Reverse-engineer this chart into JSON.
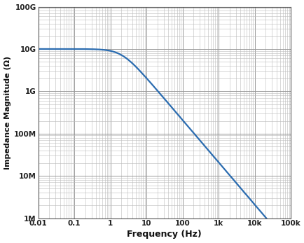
{
  "R": 10000000000.0,
  "C": 7.6e-12,
  "freq_min": 0.01,
  "freq_max": 100000.0,
  "n_points": 3000,
  "xlim": [
    0.01,
    100000.0
  ],
  "ylim": [
    1000000.0,
    100000000000.0
  ],
  "xlabel": "Frequency (Hz)",
  "ylabel": "Impedance Magnitude (Ω)",
  "line_color": "#2b6cb0",
  "line_width": 1.6,
  "grid_major_color": "#999999",
  "grid_minor_color": "#bbbbbb",
  "grid_major_lw": 0.7,
  "grid_minor_lw": 0.4,
  "background_color": "#ffffff",
  "xtick_labels": [
    "0.01",
    "0.1",
    "1",
    "10",
    "100",
    "1k",
    "10k",
    "100k"
  ],
  "xtick_positions": [
    0.01,
    0.1,
    1,
    10,
    100,
    1000,
    10000,
    100000
  ],
  "ytick_labels": [
    "1M",
    "10M",
    "100M",
    "1G",
    "10G",
    "100G"
  ],
  "ytick_positions": [
    1000000.0,
    10000000.0,
    100000000.0,
    1000000000.0,
    10000000000.0,
    100000000000.0
  ]
}
